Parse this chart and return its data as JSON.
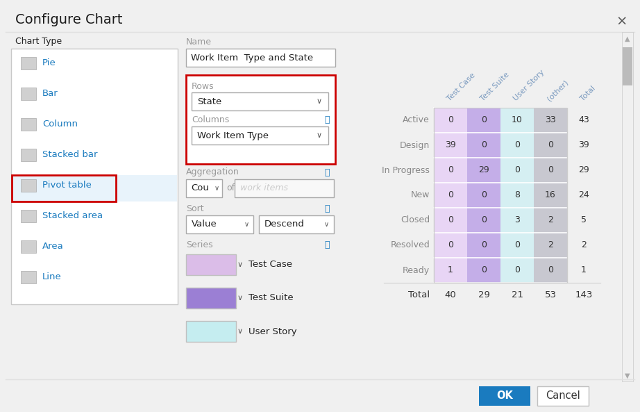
{
  "title": "Configure Chart",
  "dialog_bg": "#ffffff",
  "chart_type_label": "Chart Type",
  "chart_types": [
    "Pie",
    "Bar",
    "Column",
    "Stacked bar",
    "Pivot table",
    "Stacked area",
    "Area",
    "Line"
  ],
  "selected_chart_type": "Pivot table",
  "chart_type_selected_bg": "#e8f3fb",
  "chart_type_text_color": "#1a7bbf",
  "name_label": "Name",
  "name_value": "Work Item  Type and State",
  "rows_label": "Rows",
  "rows_value": "State",
  "columns_label": "Columns",
  "columns_value": "Work Item Type",
  "aggregation_label": "Aggregation",
  "aggregation_value": "Cou",
  "aggregation_of": "of",
  "aggregation_placeholder": "work items",
  "sort_label": "Sort",
  "sort_value": "Value",
  "sort_dir": "Descend",
  "series_label": "Series",
  "series_items": [
    {
      "color": "#dbbde8",
      "name": "Test Case"
    },
    {
      "color": "#9b7fd4",
      "name": "Test Suite"
    },
    {
      "color": "#c5edf0",
      "name": "User Story"
    }
  ],
  "pivot_col_headers": [
    "Test Case",
    "Test Suite",
    "User Story",
    "(other)",
    "Total"
  ],
  "pivot_row_headers": [
    "Active",
    "Design",
    "In Progress",
    "New",
    "Closed",
    "Resolved",
    "Ready",
    "Total"
  ],
  "pivot_data": [
    [
      0,
      0,
      10,
      33,
      43
    ],
    [
      39,
      0,
      0,
      0,
      39
    ],
    [
      0,
      29,
      0,
      0,
      29
    ],
    [
      0,
      0,
      8,
      16,
      24
    ],
    [
      0,
      0,
      3,
      2,
      5
    ],
    [
      0,
      0,
      0,
      2,
      2
    ],
    [
      1,
      0,
      0,
      0,
      1
    ],
    [
      40,
      29,
      21,
      53,
      143
    ]
  ],
  "col_colors": [
    "#e8d5f5",
    "#c4aee8",
    "#d5eff2",
    "#c8c8d0"
  ],
  "row_label_color": "#8878aa",
  "col_header_color": "#7a9abf",
  "total_row_idx": 7,
  "total_col_idx": 4,
  "ok_button_color": "#1a7bbf",
  "ok_text": "OK",
  "cancel_text": "Cancel",
  "info_color": "#1a7bbf",
  "red_border": "#cc0000"
}
